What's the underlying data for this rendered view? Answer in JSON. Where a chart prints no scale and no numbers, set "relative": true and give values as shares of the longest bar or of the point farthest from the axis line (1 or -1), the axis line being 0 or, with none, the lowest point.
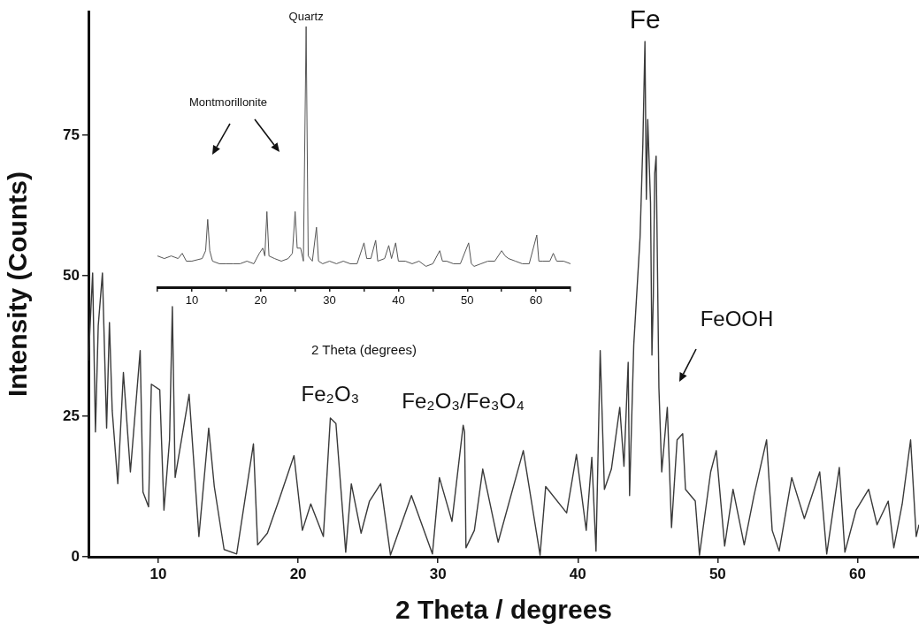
{
  "chart_data": [
    {
      "type": "line",
      "xlabel": "2 Theta / degrees",
      "ylabel": "Intensity (Counts)",
      "color": "#3a3a3a",
      "marker": "none",
      "xlim": [
        5,
        64.4
      ],
      "xticks": [
        10,
        20,
        30,
        40,
        50,
        60
      ],
      "ylim": [
        0,
        97
      ],
      "yticks": [
        0,
        25,
        50,
        75
      ],
      "x": [
        5.0,
        5.3,
        5.5,
        5.7,
        6.0,
        6.3,
        6.5,
        6.7,
        7.1,
        7.5,
        8.0,
        8.7,
        8.9,
        9.3,
        9.5,
        10.1,
        10.4,
        10.8,
        11.0,
        11.2,
        12.2,
        12.9,
        13.6,
        14.0,
        14.7,
        15.6,
        16.8,
        17.1,
        17.8,
        18.6,
        19.7,
        20.3,
        20.9,
        21.8,
        22.3,
        22.7,
        23.4,
        23.8,
        24.5,
        25.1,
        25.9,
        26.6,
        28.1,
        29.6,
        30.1,
        31.0,
        31.8,
        31.9,
        32.0,
        32.6,
        33.2,
        34.3,
        36.1,
        37.3,
        37.7,
        39.2,
        39.9,
        40.6,
        41.0,
        41.3,
        41.6,
        41.9,
        42.4,
        43.0,
        43.3,
        43.6,
        43.7,
        44.0,
        44.45,
        44.65,
        44.8,
        44.9,
        45.0,
        45.2,
        45.3,
        45.4,
        45.5,
        45.6,
        45.8,
        46.0,
        46.4,
        46.7,
        47.1,
        47.5,
        47.7,
        48.4,
        48.7,
        49.5,
        49.9,
        50.5,
        51.1,
        51.9,
        52.6,
        53.5,
        53.9,
        54.4,
        55.3,
        56.2,
        57.3,
        57.8,
        58.7,
        59.1,
        59.9,
        60.8,
        61.4,
        62.2,
        62.6,
        63.2,
        63.8,
        64.2,
        64.4
      ],
      "values": [
        34.9,
        50.5,
        22.2,
        41.1,
        50.5,
        22.9,
        41.7,
        26.0,
        13.0,
        32.8,
        15.1,
        36.7,
        11.5,
        8.9,
        30.7,
        29.7,
        8.3,
        20.8,
        44.5,
        14.1,
        28.9,
        3.6,
        22.9,
        12.5,
        1.3,
        0.5,
        20.1,
        2.1,
        4.2,
        9.9,
        18.0,
        4.7,
        9.4,
        3.6,
        24.7,
        23.7,
        0.8,
        13.0,
        4.2,
        9.9,
        13.0,
        0.3,
        10.9,
        0.5,
        14.1,
        6.3,
        23.4,
        22.2,
        1.6,
        4.7,
        15.6,
        2.6,
        18.9,
        0.3,
        12.5,
        7.8,
        18.2,
        4.7,
        17.7,
        1.0,
        36.7,
        12.0,
        15.6,
        26.6,
        16.1,
        34.6,
        10.9,
        37.7,
        56.8,
        73.4,
        91.7,
        63.6,
        77.8,
        63.0,
        35.9,
        46.3,
        68.2,
        71.3,
        30.0,
        15.1,
        26.6,
        5.2,
        20.8,
        21.9,
        12.0,
        9.9,
        0.3,
        15.1,
        18.9,
        1.9,
        12.0,
        2.1,
        10.9,
        20.8,
        4.7,
        1.0,
        14.1,
        6.8,
        15.1,
        0.5,
        15.9,
        0.8,
        8.3,
        12.0,
        5.7,
        9.9,
        1.6,
        9.4,
        20.8,
        3.6,
        5.7
      ],
      "annotations": [
        {
          "text": "Fe",
          "x": 44.8,
          "y": 91.7
        },
        {
          "text": "Fe₂O₃",
          "x": 22.3,
          "y": 24.7
        },
        {
          "text": "Fe₂O₃/Fe₃O₄",
          "x": 31.8,
          "y": 23.4
        },
        "FeOOH"
      ]
    },
    {
      "type": "line",
      "xlabel": "2 Theta (degrees)",
      "relative": true,
      "color": "#555555",
      "marker": "none",
      "xlim": [
        5,
        65
      ],
      "xticks": [
        {
          "value": 5,
          "label": null
        },
        10,
        {
          "value": 15,
          "label": null
        },
        20,
        {
          "value": 25,
          "label": null
        },
        30,
        {
          "value": 35,
          "label": null
        },
        40,
        {
          "value": 45,
          "label": null
        },
        50,
        {
          "value": 55,
          "label": null
        },
        60,
        {
          "value": 65,
          "label": null
        }
      ],
      "x": [
        5,
        6,
        7,
        8,
        8.6,
        9.2,
        10,
        11.5,
        12.0,
        12.3,
        12.6,
        13,
        14,
        15,
        16,
        17,
        18,
        19,
        19.8,
        20.3,
        20.6,
        20.9,
        21.2,
        22,
        23,
        24,
        24.6,
        25.0,
        25.3,
        25.8,
        26.2,
        26.6,
        26.9,
        27.5,
        28.1,
        28.4,
        29,
        30,
        31,
        32,
        33,
        34,
        35.0,
        35.4,
        36,
        36.7,
        37.0,
        38,
        38.6,
        39,
        39.6,
        40,
        41,
        42,
        43,
        44,
        45,
        46.0,
        46.4,
        47,
        48,
        49,
        50.2,
        50.6,
        51,
        52,
        53,
        54,
        55.0,
        55.5,
        56,
        57,
        58,
        59,
        60.1,
        60.4,
        61,
        62,
        62.5,
        63,
        64,
        65
      ],
      "values": [
        0.12,
        0.11,
        0.12,
        0.11,
        0.13,
        0.1,
        0.1,
        0.11,
        0.14,
        0.26,
        0.14,
        0.1,
        0.09,
        0.09,
        0.09,
        0.09,
        0.1,
        0.09,
        0.13,
        0.15,
        0.12,
        0.29,
        0.12,
        0.11,
        0.1,
        0.11,
        0.13,
        0.29,
        0.15,
        0.15,
        0.1,
        1.0,
        0.12,
        0.1,
        0.23,
        0.1,
        0.09,
        0.1,
        0.09,
        0.1,
        0.09,
        0.09,
        0.17,
        0.11,
        0.11,
        0.18,
        0.1,
        0.11,
        0.16,
        0.11,
        0.17,
        0.1,
        0.1,
        0.09,
        0.1,
        0.08,
        0.09,
        0.14,
        0.1,
        0.1,
        0.09,
        0.09,
        0.17,
        0.09,
        0.08,
        0.09,
        0.1,
        0.1,
        0.14,
        0.12,
        0.11,
        0.1,
        0.09,
        0.09,
        0.2,
        0.1,
        0.1,
        0.1,
        0.13,
        0.1,
        0.1,
        0.09
      ],
      "annotations": [
        {
          "text": "Quartz",
          "x": 26.6,
          "y": 1.0
        },
        "Montmorillonite"
      ]
    }
  ]
}
